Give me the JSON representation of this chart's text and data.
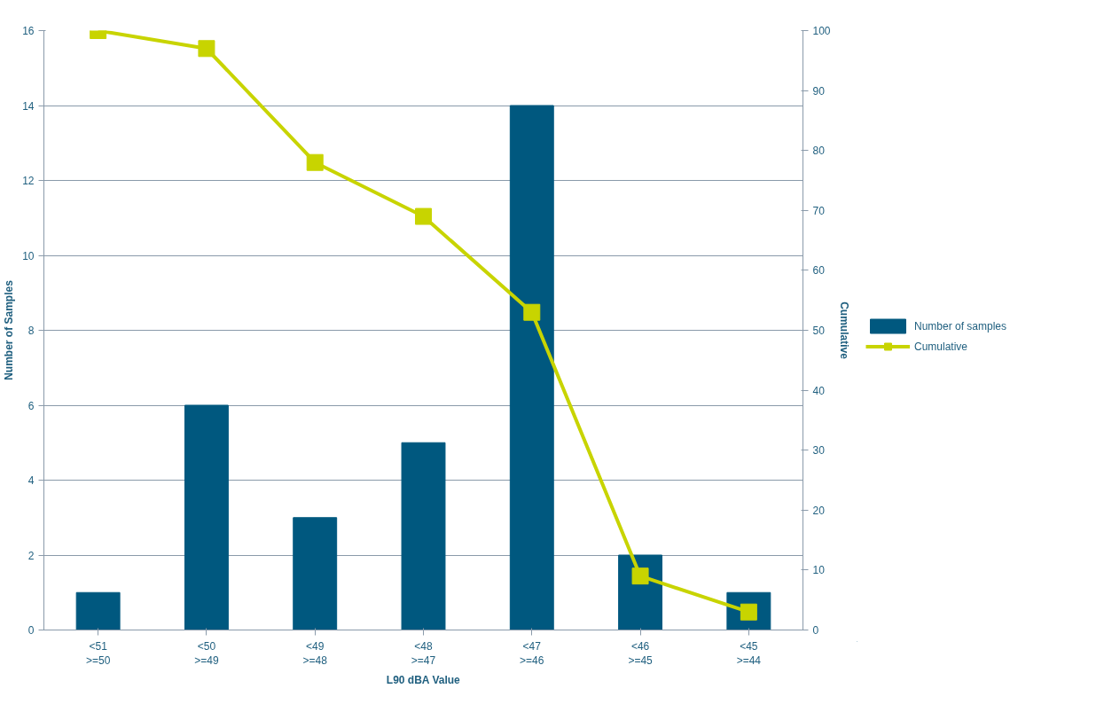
{
  "chart_data": {
    "type": "bar",
    "xlabel": "L90 dBA Value",
    "ylabel": "Number of Samples",
    "y2label": "Cumulative",
    "categories": [
      "<51\n>=50",
      "<50\n>=49",
      "<49\n>=48",
      "<48\n>=47",
      "<47\n>=46",
      "<46\n>=45",
      "<45\n>=44"
    ],
    "series": [
      {
        "name": "Number of samples",
        "color": "#00587f",
        "values": [
          1,
          6,
          3,
          5,
          14,
          2,
          1
        ]
      },
      {
        "name": "Cumulative",
        "type": "line",
        "axis": "y2",
        "color": "#c8d400",
        "marker": "square",
        "values": [
          100,
          97,
          78,
          69,
          53,
          9,
          3
        ]
      }
    ],
    "ylim": [
      0,
      16
    ],
    "yticks": [
      0,
      2,
      4,
      6,
      8,
      10,
      12,
      14,
      16
    ],
    "y2lim": [
      0,
      100
    ],
    "y2ticks": [
      0,
      10,
      20,
      30,
      40,
      50,
      60,
      70,
      80,
      90,
      100
    ],
    "grid": "y",
    "legend": "right"
  }
}
